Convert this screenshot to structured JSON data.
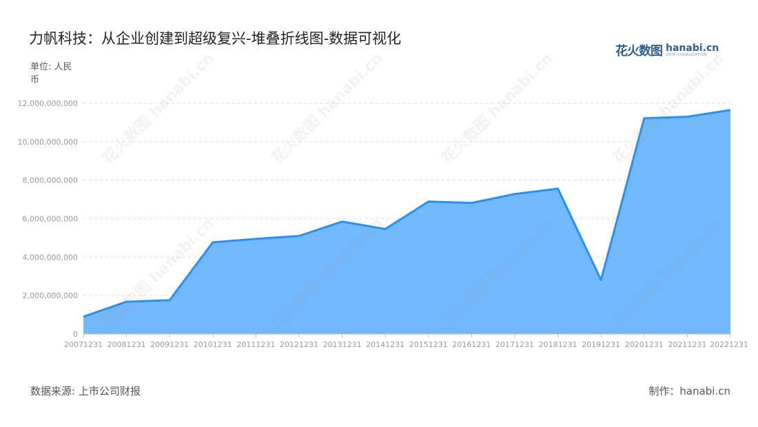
{
  "header": {
    "title": "力帆科技：从企业创建到超级复兴-堆叠折线图-数据可视化",
    "unit": "单位: 人民币"
  },
  "logo": {
    "cn": "花火数图",
    "en": "hanabi.cn",
    "sub": "DATA VISUALIZATION"
  },
  "footer": {
    "source": "数据来源: 上市公司财报",
    "credit": "制作：hanabi.cn"
  },
  "colors": {
    "line": "#2a8ff0",
    "area": "#72b8fc",
    "grid": "#dddddd",
    "axis": "#bfbfbf",
    "tick": "#999999"
  },
  "chart_data": {
    "type": "area",
    "categories": [
      "20071231",
      "20081231",
      "20091231",
      "20101231",
      "20111231",
      "20121231",
      "20131231",
      "20141231",
      "20151231",
      "20161231",
      "20171231",
      "20181231",
      "20191231",
      "20201231",
      "20211231",
      "20221231"
    ],
    "series": [
      {
        "values": [
          900000000,
          1680000000,
          1760000000,
          4770000000,
          4950000000,
          5100000000,
          5850000000,
          5460000000,
          6890000000,
          6820000000,
          7280000000,
          7560000000,
          2810000000,
          11220000000,
          11300000000,
          11650000000
        ]
      }
    ],
    "ylim": [
      0,
      12000000000
    ],
    "yticks": [
      0,
      2000000000,
      4000000000,
      6000000000,
      8000000000,
      10000000000,
      12000000000
    ],
    "ytick_labels": [
      "0",
      "2,000,000,000",
      "4,000,000,000",
      "6,000,000,000",
      "8,000,000,000",
      "10,000,000,000",
      "12,000,000,000"
    ],
    "grid": true,
    "legend": "none"
  }
}
